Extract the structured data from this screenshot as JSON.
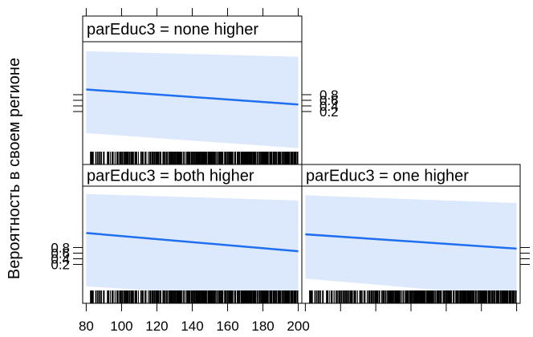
{
  "chart_data": {
    "type": "line",
    "ylabel": "Вероятность в своем регионе",
    "xlim": [
      78,
      202
    ],
    "ylim": [
      0.05,
      0.95
    ],
    "x_ticks": [
      80,
      100,
      120,
      140,
      160,
      180,
      200
    ],
    "x_tick_labels": [
      "80",
      "100",
      "120",
      "140",
      "160",
      "180",
      "200"
    ],
    "y_ticks": [
      0.2,
      0.4,
      0.6,
      0.8
    ],
    "y_tick_labels": [
      "0.2",
      "0.4",
      "0.6",
      "0.8"
    ],
    "line_color": "#1f6ff0",
    "band_color": "#dce8fb",
    "panels": [
      {
        "strip": "parEduc3 = none higher",
        "position": "top-left",
        "line": {
          "x": [
            80,
            200
          ],
          "y": [
            0.6,
            0.49
          ]
        },
        "band_upper": {
          "x": [
            80,
            200
          ],
          "y": [
            0.88,
            0.84
          ]
        },
        "band_lower": {
          "x": [
            80,
            200
          ],
          "y": [
            0.28,
            0.17
          ]
        }
      },
      {
        "strip": "parEduc3 = both higher",
        "position": "bottom-left",
        "line": {
          "x": [
            80,
            200
          ],
          "y": [
            0.59,
            0.45
          ]
        },
        "band_upper": {
          "x": [
            80,
            200
          ],
          "y": [
            0.89,
            0.84
          ]
        },
        "band_lower": {
          "x": [
            80,
            200
          ],
          "y": [
            0.18,
            0.08
          ]
        }
      },
      {
        "strip": "parEduc3 = one higher",
        "position": "bottom-right",
        "line": {
          "x": [
            80,
            200
          ],
          "y": [
            0.58,
            0.47
          ]
        },
        "band_upper": {
          "x": [
            80,
            200
          ],
          "y": [
            0.88,
            0.82
          ]
        },
        "band_lower": {
          "x": [
            80,
            200
          ],
          "y": [
            0.24,
            0.1
          ]
        }
      }
    ]
  }
}
